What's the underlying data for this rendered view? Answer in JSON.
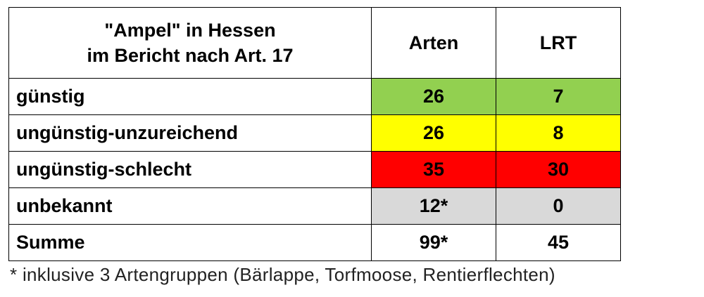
{
  "table": {
    "header": {
      "title_lines": [
        "\"Ampel\" in Hessen",
        "im Bericht nach Art. 17"
      ],
      "columns": [
        "Arten",
        "LRT"
      ]
    },
    "rows": [
      [
        "günstig",
        26,
        7
      ],
      [
        "ungünstig-unzureichend",
        26,
        8
      ],
      [
        "ungünstig-schlecht",
        35,
        30
      ],
      [
        "unbekannt",
        "12*",
        0
      ],
      [
        "Summe",
        "99*",
        45
      ]
    ]
  },
  "footnote": "* inklusive 3 Artengruppen (Bärlappe, Torfmoose, Rentierflechten)"
}
